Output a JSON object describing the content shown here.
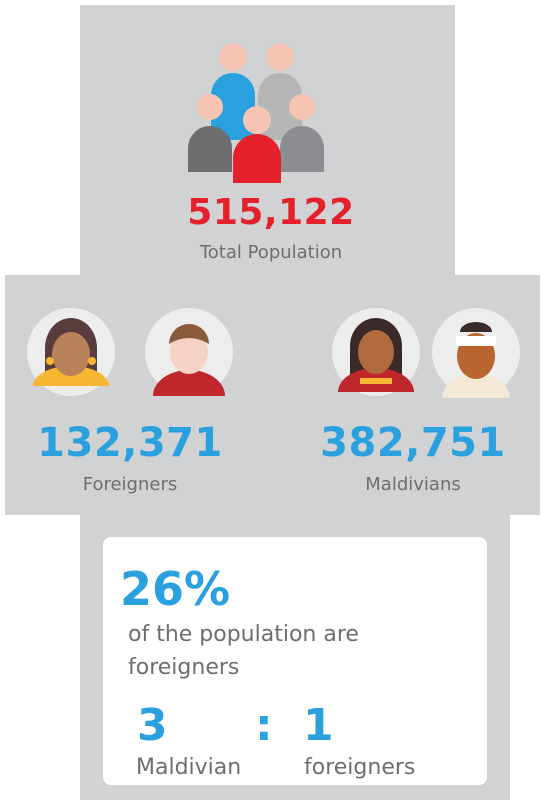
{
  "total": {
    "value": "515,122",
    "label": "Total Population"
  },
  "groups": [
    {
      "value": "132,371",
      "label": "Foreigners"
    },
    {
      "value": "382,751",
      "label": "Maldivians"
    }
  ],
  "share": {
    "percent": "26%",
    "text": "of the population are foreigners"
  },
  "ratio": {
    "left": "3",
    "separator": ":",
    "right": "1",
    "left_label": "Maldivian",
    "right_label": "foreigners"
  }
}
